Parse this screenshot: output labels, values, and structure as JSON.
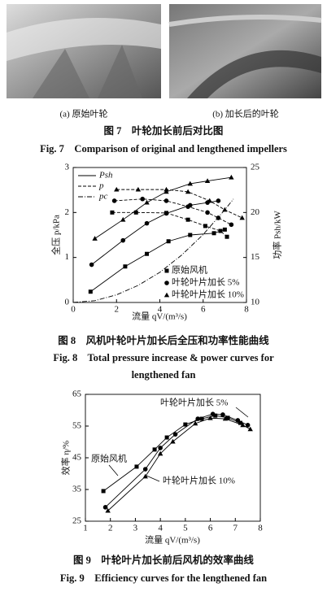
{
  "figure7": {
    "panels": [
      {
        "caption": "(a) 原始叶轮"
      },
      {
        "caption": "(b) 加长后的叶轮"
      }
    ],
    "caption_cn": "图 7    叶轮加长前后对比图",
    "caption_en": "Fig. 7    Comparison of original and lengthened impellers"
  },
  "chart_data": [
    {
      "type": "line",
      "caption_cn": "图 8    风机叶轮叶片加长后全压和功率性能曲线",
      "caption_en": [
        "Fig. 8    Total pressure increase & power curves for",
        "lengthened fan"
      ],
      "xlabel": "流量 qV/(m³/s)",
      "ylabel": "全压 p/kPa",
      "y2label": "功率 Psh/kW",
      "xlim": [
        0,
        8
      ],
      "xticks": [
        0,
        2,
        4,
        6,
        8
      ],
      "ylim": [
        0,
        3
      ],
      "yticks": [
        0,
        1,
        2,
        3
      ],
      "y2lim": [
        10,
        25
      ],
      "y2ticks": [
        10,
        15,
        20,
        25
      ],
      "line_legend": [
        {
          "name": "Psh",
          "dash": "solid"
        },
        {
          "name": "p",
          "dash": "dashed"
        },
        {
          "name": "pc",
          "dash": "dashdot"
        }
      ],
      "marker_legend": [
        {
          "name": "原始风机",
          "marker": "square"
        },
        {
          "name": "叶轮叶片加长 5%",
          "marker": "circle"
        },
        {
          "name": "叶轮叶片加长 10%",
          "marker": "triangle"
        }
      ],
      "series": [
        {
          "marker": "square",
          "dash": "solid",
          "axis": "y2",
          "x": [
            0.8,
            2.4,
            3.4,
            4.4,
            5.4,
            6.5,
            7.0
          ],
          "values": [
            11.2,
            14.0,
            15.4,
            16.8,
            17.5,
            17.7,
            18.1
          ]
        },
        {
          "marker": "circle",
          "dash": "solid",
          "axis": "y2",
          "x": [
            0.85,
            2.3,
            3.4,
            4.3,
            5.4,
            6.2,
            6.7
          ],
          "values": [
            14.2,
            16.9,
            18.8,
            19.9,
            20.8,
            21.1,
            21.3
          ]
        },
        {
          "marker": "triangle",
          "dash": "solid",
          "axis": "y2",
          "x": [
            1.0,
            2.3,
            3.4,
            4.3,
            5.4,
            6.2,
            7.3
          ],
          "values": [
            17.1,
            19.2,
            21.1,
            22.3,
            23.2,
            23.5,
            23.9
          ]
        },
        {
          "marker": "square",
          "dash": "dashed",
          "x": [
            1.8,
            2.9,
            4.3,
            5.3,
            6.1,
            6.8,
            7.1
          ],
          "values": [
            2.0,
            2.0,
            1.99,
            1.84,
            1.7,
            1.59,
            1.46
          ]
        },
        {
          "marker": "circle",
          "dash": "dashed",
          "x": [
            1.9,
            3.2,
            4.3,
            5.3,
            6.2,
            6.7,
            7.3
          ],
          "values": [
            2.26,
            2.3,
            2.26,
            2.13,
            2.0,
            1.88,
            1.73
          ]
        },
        {
          "marker": "triangle",
          "dash": "dashed",
          "x": [
            2.0,
            3.0,
            4.3,
            5.3,
            6.3,
            7.0,
            7.8
          ],
          "values": [
            2.51,
            2.51,
            2.51,
            2.46,
            2.26,
            2.06,
            1.88
          ]
        },
        {
          "dash": "dashdot",
          "x": [
            0,
            1,
            2,
            3,
            4,
            5,
            6,
            7,
            7.4
          ],
          "values": [
            0,
            0.04,
            0.17,
            0.38,
            0.67,
            1.05,
            1.51,
            2.06,
            2.3
          ]
        }
      ]
    },
    {
      "type": "line",
      "caption_cn": "图 9    叶轮叶片加长前后风机的效率曲线",
      "caption_en": [
        "Fig. 9    Efficiency curves for the lengthened fan"
      ],
      "xlabel": "流量 qV/(m³/s)",
      "ylabel": "效率 η/%",
      "xlim": [
        1,
        8
      ],
      "xticks": [
        1,
        2,
        3,
        4,
        5,
        6,
        7,
        8
      ],
      "ylim": [
        25,
        65
      ],
      "yticks": [
        25,
        35,
        45,
        55,
        65
      ],
      "annotations": [
        "叶轮叶片加长 5%",
        "原始风机",
        "叶轮叶片加长 10%"
      ],
      "series": [
        {
          "marker": "square",
          "dash": "solid",
          "x": [
            1.72,
            3.05,
            3.77,
            4.26,
            5.0,
            5.66,
            6.2,
            6.7,
            7.2
          ],
          "values": [
            34.5,
            42.2,
            47.6,
            51.4,
            55.5,
            57.3,
            58.3,
            57.6,
            56
          ]
        },
        {
          "marker": "circle",
          "dash": "solid",
          "x": [
            1.8,
            3.4,
            4.0,
            4.6,
            5.5,
            6.1,
            6.5,
            7.1,
            7.5
          ],
          "values": [
            29.4,
            41.4,
            48.1,
            52.4,
            57.3,
            58.8,
            58.6,
            56.8,
            55.3
          ]
        },
        {
          "marker": "triangle",
          "dash": "solid",
          "x": [
            1.9,
            3.4,
            4.0,
            4.5,
            5.4,
            6.0,
            6.6,
            7.3,
            7.6
          ],
          "values": [
            28.3,
            39.1,
            46.3,
            50.1,
            55.8,
            57.5,
            57.3,
            55.3,
            54
          ]
        }
      ]
    }
  ]
}
